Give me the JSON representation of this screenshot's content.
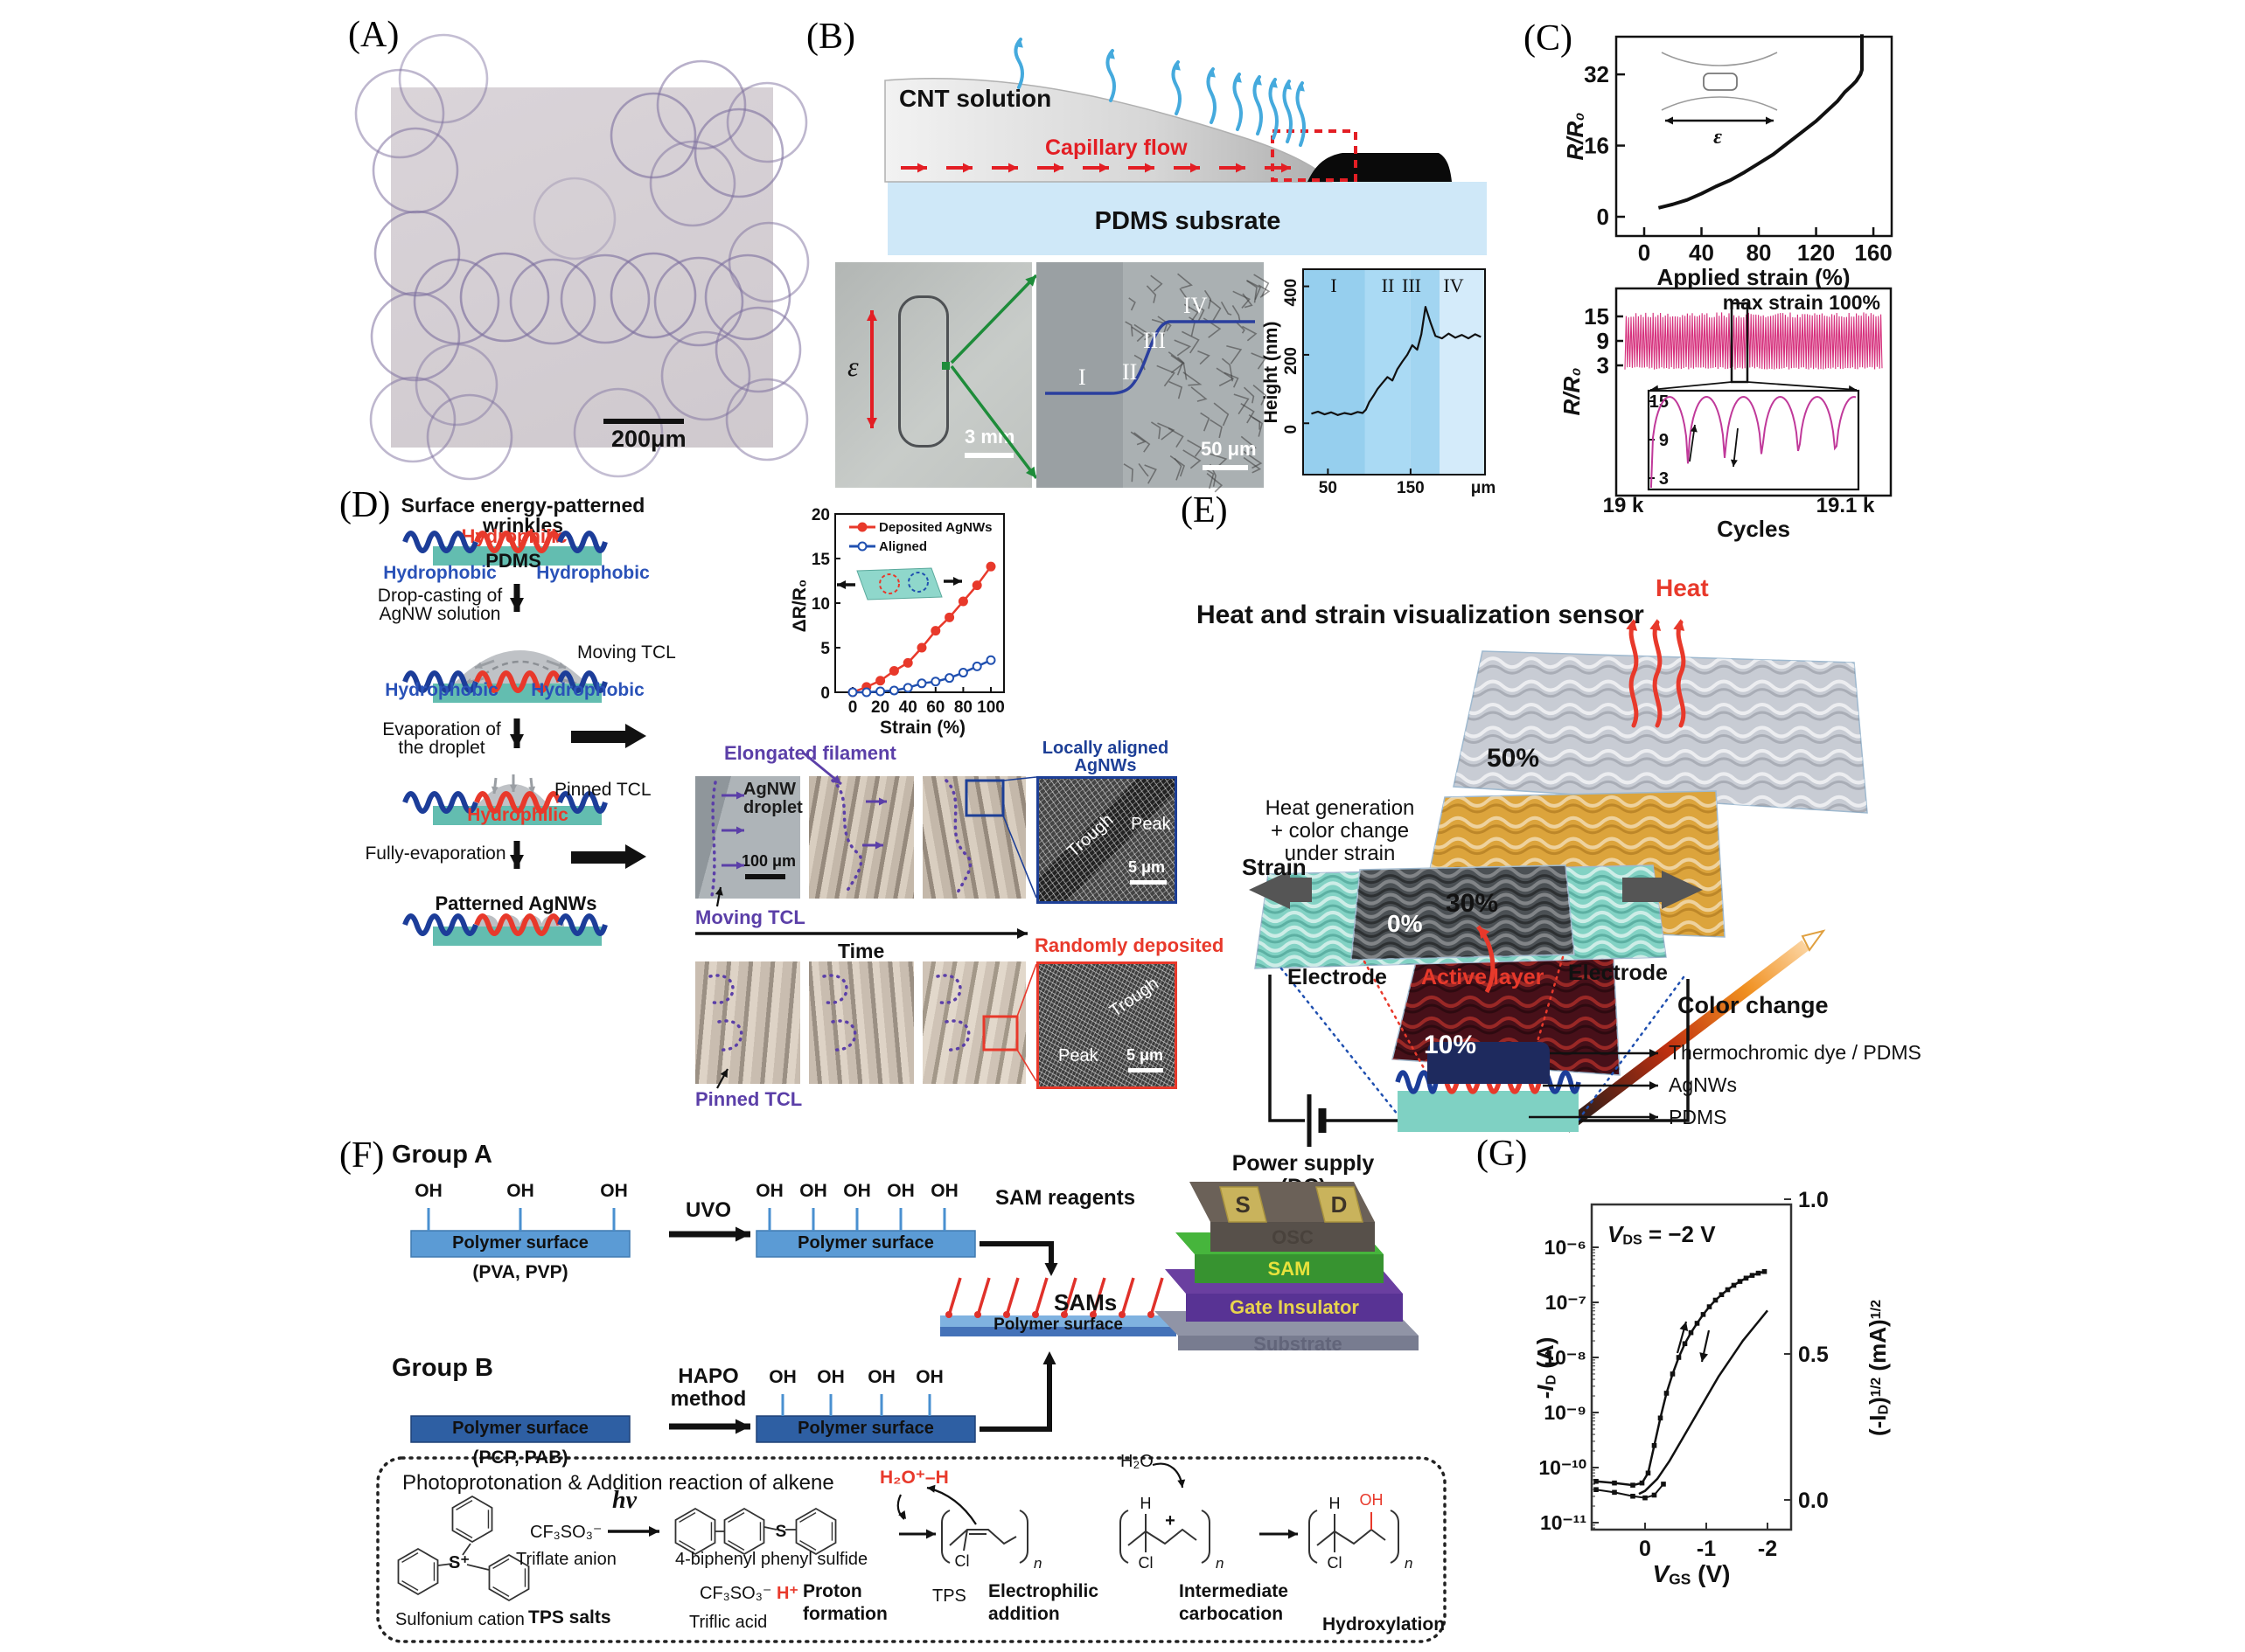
{
  "labels": {
    "a": "(A)",
    "b": "(B)",
    "c": "(C)",
    "d": "(D)",
    "e": "(E)",
    "f": "(F)",
    "g": "(G)"
  },
  "panel_a": {
    "scale_bar": "200μm"
  },
  "panel_b": {
    "cnt": "CNT solution",
    "capillary": "Capillary flow",
    "pdms": "PDMS subsrate",
    "epsilon": "ε",
    "scale_3mm": "3 mm",
    "r1": "I",
    "r2": "II",
    "r3": "III",
    "r4": "IV",
    "scale_50": "50 μm"
  },
  "panel_c": {
    "epsilon": "ε"
  },
  "panel_d": {
    "title_l1": "Surface energy-patterned",
    "title_l2": "wrinkles",
    "hydrophilic": "Hydrophilic",
    "pdms": "PDMS",
    "hydrophobic": "Hydrophobic",
    "step1_l1": "Drop-casting of",
    "step1_l2": "AgNW solution",
    "moving_tcl": "Moving TCL",
    "step2_l1": "Evaporation of",
    "step2_l2": "the droplet",
    "pinned_tcl": "Pinned TCL",
    "hydrophilic2": "Hydrophilic",
    "step3": "Fully-evaporation",
    "patterned": "Patterned AgNWs",
    "micro": {
      "elongated": "Elongated filament",
      "agnw_l1": "AgNW",
      "agnw_l2": "droplet",
      "scale_100": "100 μm",
      "moving_tcl": "Moving TCL",
      "time": "Time",
      "locally_l1": "Locally aligned",
      "locally_l2": "AgNWs",
      "trough_top": "Trough",
      "peak_top": "Peak",
      "scale_top": "5 μm",
      "randomly": "Randomly deposited",
      "trough_bot": "Trough",
      "peak_bot": "Peak",
      "scale_bot": "5 μm",
      "pinned_tcl": "Pinned TCL"
    }
  },
  "panel_e": {
    "title": "Heat and strain visualization sensor",
    "heat": "Heat",
    "gen_l1": "Heat generation",
    "gen_l2": "+ color change",
    "gen_l3": "under strain",
    "pct50": "50%",
    "pct30": "30%",
    "pct10": "10%",
    "pct0": "0%",
    "color_change": "Color change",
    "strain": "Strain",
    "electrode_l": "Electrode",
    "active": "Active layer",
    "electrode_r": "Electrode",
    "power_l1": "Power supply",
    "power_l2": "(DC)",
    "layer1": "Thermochromic dye / PDMS",
    "layer2": "AgNWs",
    "layer3": "PDMS"
  },
  "panel_f": {
    "group_a": "Group A",
    "group_b": "Group B",
    "oh": "OH",
    "polymer": "Polymer surface",
    "pva": "(PVA, PVP)",
    "pcp": "(PCP, PAB)",
    "uvo": "UVO",
    "sam_reagents": "SAM reagents",
    "sams": "SAMs",
    "hapo_l1": "HAPO",
    "hapo_l2": "method",
    "stack": {
      "s": "S",
      "d": "D",
      "osc": "OSC",
      "sam": "SAM",
      "gate": "Gate Insulator",
      "substrate": "Substrate"
    },
    "box_title": "Photoprotonation & Addition reaction of alkene",
    "triflate": "CF₃SO₃⁻",
    "triflate_label": "Triflate anion",
    "sulfonium": "Sulfonium cation",
    "tps_salts": "TPS salts",
    "hnu": "hν",
    "biphenyl": "4-biphenyl phenyl sulfide",
    "triflic": "CF₃SO₃⁻",
    "triflic_h": "H⁺",
    "triflic_label": "Triflic acid",
    "proton_l1": "Proton",
    "proton_l2": "formation",
    "h3o": "H₂O⁺–H",
    "tps": "TPS",
    "electro_l1": "Electrophilic",
    "electro_l2": "addition",
    "h2o": "H₂O",
    "inter_l1": "Intermediate",
    "inter_l2": "carbocation",
    "hydrox": "Hydroxylation",
    "cl": "Cl",
    "h": "H",
    "oh_red": "OH",
    "n": "n",
    "plus": "+",
    "s_atom": "S",
    "s_plus": "S⁺"
  },
  "panel_g": {
    "vds_v": "V",
    "vds_sub": "DS",
    "vds_rest": " = −2 V",
    "yl_pre": "-I",
    "yl_sub": "D",
    "yl_post": " (A)",
    "yr_p1": "(-I",
    "yr_sub": "D",
    "yr_p2": ")",
    "yr_sup1": "1/2",
    "yr_p3": " (mA)",
    "yr_sup2": "1/2",
    "x_v": "V",
    "x_sub": "GS",
    "x_rest": " (V)"
  },
  "chart_data": [
    {
      "id": "b_height",
      "type": "line",
      "ylabel": "Height (nm)",
      "x_unit": "μm",
      "yticks": [
        0,
        200,
        400
      ],
      "xticks": [
        50,
        150
      ],
      "ylim": [
        -150,
        450
      ],
      "xlim": [
        20,
        240
      ],
      "regions": [
        {
          "label": "I",
          "from": 20,
          "to": 95,
          "color": "#96cfee"
        },
        {
          "label": "II",
          "from": 95,
          "to": 150,
          "color": "#aadaf4"
        },
        {
          "label": "III",
          "from": 150,
          "to": 185,
          "color": "#a2d5f1"
        },
        {
          "label": "IV",
          "from": 185,
          "to": 240,
          "color": "#d4ebfa"
        }
      ],
      "x": [
        30,
        38,
        46,
        54,
        62,
        70,
        78,
        86,
        92,
        96,
        100,
        105,
        110,
        116,
        122,
        128,
        134,
        140,
        146,
        152,
        158,
        163,
        168,
        174,
        180,
        188,
        196,
        204,
        212,
        220,
        228,
        235
      ],
      "y": [
        28,
        34,
        26,
        32,
        24,
        30,
        26,
        33,
        30,
        40,
        62,
        80,
        100,
        118,
        135,
        125,
        158,
        180,
        200,
        228,
        215,
        260,
        340,
        295,
        255,
        248,
        262,
        250,
        258,
        248,
        260,
        252
      ]
    },
    {
      "id": "c_strain",
      "type": "line",
      "ylabel": "R/R₀",
      "xlabel": "Applied strain (%)",
      "yticks": [
        0,
        16,
        32
      ],
      "xticks": [
        0,
        40,
        80,
        120,
        160
      ],
      "ylim": [
        -5,
        42
      ],
      "xlim": [
        -20,
        172
      ],
      "x": [
        10,
        20,
        30,
        40,
        50,
        60,
        70,
        80,
        90,
        100,
        110,
        120,
        125,
        130,
        135,
        140,
        145,
        148,
        151,
        152,
        152
      ],
      "y": [
        2,
        2.8,
        3.8,
        5.2,
        6.8,
        8.2,
        10,
        12,
        14,
        16.5,
        19,
        21.5,
        23,
        24.5,
        26,
        28,
        29.5,
        30.5,
        32,
        33,
        41
      ]
    },
    {
      "id": "c_cycles",
      "type": "line",
      "annotation": "max strain 100%",
      "ylabel": "R/R₀",
      "xlabel": "Cycles",
      "yticks": [
        15,
        9,
        3
      ],
      "xtick_labels": [
        "19 k",
        "19.1 k"
      ],
      "envelope": {
        "min": 2,
        "max": 16,
        "n_cycles": 105
      },
      "inset": {
        "yticks": [
          15,
          9,
          3
        ],
        "n_cycles": 5.5,
        "peak": 15.8,
        "valley": 2
      }
    },
    {
      "id": "d_strain",
      "type": "line",
      "ylabel": "ΔR/R₀",
      "xlabel": "Strain (%)",
      "yticks": [
        0,
        5,
        10,
        15,
        20
      ],
      "xticks": [
        0,
        20,
        40,
        60,
        80,
        100
      ],
      "ylim": [
        -1.5,
        20.5
      ],
      "xlim": [
        -6,
        108
      ],
      "categories": [
        0,
        10,
        20,
        30,
        40,
        50,
        60,
        70,
        80,
        90,
        100
      ],
      "series": [
        {
          "name": "Deposited AgNWs",
          "color": "#e8392b",
          "marker": "filled",
          "values": [
            0,
            0.6,
            1.3,
            2.4,
            3.3,
            5.0,
            6.9,
            8.4,
            10.2,
            12.0,
            14.1
          ]
        },
        {
          "name": "Aligned",
          "color": "#2050b0",
          "marker": "open",
          "values": [
            0,
            0.0,
            0.1,
            0.2,
            0.5,
            1.0,
            1.2,
            1.6,
            2.2,
            2.9,
            3.6
          ]
        }
      ]
    },
    {
      "id": "g_transfer",
      "type": "line",
      "annotation": "VDS = −2 V",
      "xticks_labels": [
        "0",
        "-1",
        "-2"
      ],
      "yticks_left": [
        "10⁻⁶",
        "10⁻⁷",
        "10⁻⁸",
        "10⁻⁹",
        "10⁻¹⁰",
        "10⁻¹¹"
      ],
      "yticks_right": [
        "1.0",
        "0.5",
        "0.0"
      ],
      "series": [
        {
          "name": "log forward",
          "x": [
            0.8,
            0.5,
            0.2,
            0.05,
            -0.05,
            -0.15,
            -0.25,
            -0.35,
            -0.45,
            -0.55,
            -0.65,
            -0.75,
            -0.85,
            -0.95,
            -1.05,
            -1.15,
            -1.25,
            -1.35,
            -1.45,
            -1.55,
            -1.65,
            -1.75,
            -1.85,
            -1.95
          ],
          "log10_id": [
            -10.25,
            -10.28,
            -10.32,
            -10.28,
            -10.1,
            -9.6,
            -9.1,
            -8.65,
            -8.3,
            -8.0,
            -7.75,
            -7.55,
            -7.38,
            -7.22,
            -7.08,
            -6.96,
            -6.86,
            -6.77,
            -6.69,
            -6.62,
            -6.56,
            -6.51,
            -6.47,
            -6.44
          ]
        },
        {
          "name": "log reverse",
          "x": [
            0.8,
            0.5,
            0.2,
            0,
            -0.15,
            -0.3
          ],
          "log10_id": [
            -10.4,
            -10.45,
            -10.52,
            -10.55,
            -10.5,
            -10.3
          ]
        },
        {
          "name": "sqrt branch",
          "x": [
            0.1,
            0,
            -0.2,
            -0.4,
            -0.6,
            -0.8,
            -1.0,
            -1.2,
            -1.4,
            -1.6,
            -1.8,
            -2.0
          ],
          "sqrt_ma": [
            0.02,
            0.03,
            0.07,
            0.13,
            0.2,
            0.27,
            0.34,
            0.41,
            0.47,
            0.53,
            0.58,
            0.63
          ]
        }
      ]
    }
  ]
}
